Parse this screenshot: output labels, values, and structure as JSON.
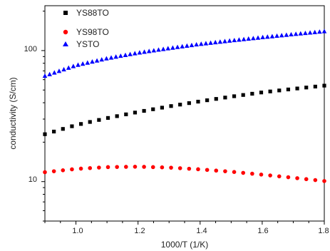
{
  "chart_data": {
    "type": "scatter",
    "xlabel": "1000/T (1/K)",
    "ylabel": "conductivity (S/cm)",
    "xlim": [
      0.9,
      1.8
    ],
    "ylim": [
      5,
      220
    ],
    "yscale": "log",
    "grid": false,
    "legend_position": "top-left",
    "x_ticks": [
      "1.0",
      "1.2",
      "1.4",
      "1.6",
      "1.8"
    ],
    "y_ticks": [
      "10",
      "100"
    ],
    "series": [
      {
        "name": "YS88TO",
        "marker": "square",
        "color": "#000000",
        "x": [
          0.9,
          1.0,
          1.1,
          1.2,
          1.3,
          1.4,
          1.5,
          1.6,
          1.7,
          1.8
        ],
        "y": [
          23,
          27,
          30.5,
          34,
          37.5,
          41,
          44.5,
          48,
          51,
          54
        ]
      },
      {
        "name": "YS98TO",
        "marker": "circle",
        "color": "#ff0000",
        "x": [
          0.9,
          1.0,
          1.1,
          1.2,
          1.3,
          1.4,
          1.5,
          1.6,
          1.7,
          1.8
        ],
        "y": [
          11.8,
          12.5,
          12.9,
          13.0,
          12.8,
          12.4,
          11.9,
          11.3,
          10.7,
          10.1
        ]
      },
      {
        "name": "YSTO",
        "marker": "triangle",
        "color": "#0000ff",
        "x": [
          0.9,
          1.0,
          1.1,
          1.2,
          1.3,
          1.4,
          1.5,
          1.6,
          1.7,
          1.8
        ],
        "y": [
          64,
          77,
          87,
          96,
          104,
          112,
          119,
          126,
          133,
          140
        ]
      }
    ]
  }
}
